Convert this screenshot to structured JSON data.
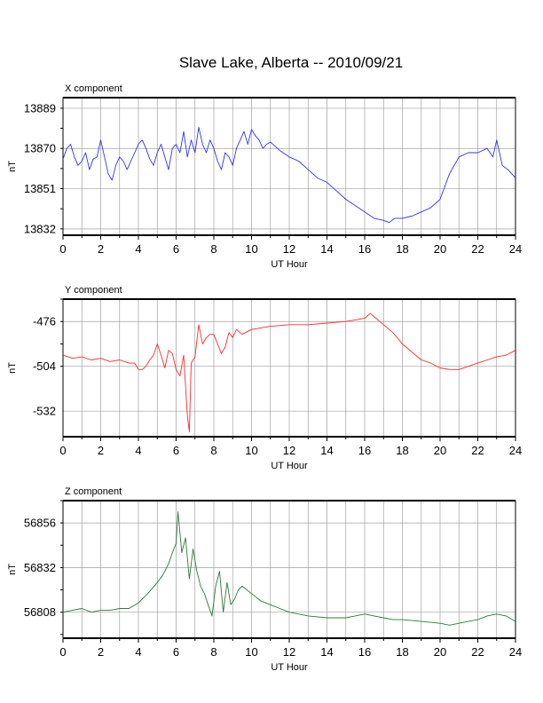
{
  "page_title": "Slave Lake, Alberta -- 2010/09/21",
  "chart_data": [
    {
      "type": "line",
      "title": "X component",
      "xlabel": "UT Hour",
      "ylabel": "nT",
      "xlim": [
        0,
        24
      ],
      "ylim": [
        13829,
        13894
      ],
      "x_ticks": [
        0,
        2,
        4,
        6,
        8,
        10,
        12,
        14,
        16,
        18,
        20,
        22,
        24
      ],
      "y_ticks": [
        13832,
        13851,
        13870,
        13889
      ],
      "grid": true,
      "series": [
        {
          "color": "#3030ff",
          "x": [
            0,
            0.2,
            0.4,
            0.6,
            0.8,
            1.0,
            1.2,
            1.4,
            1.6,
            1.8,
            2.0,
            2.2,
            2.4,
            2.6,
            2.8,
            3.0,
            3.2,
            3.4,
            3.6,
            3.8,
            4.0,
            4.2,
            4.4,
            4.6,
            4.8,
            5.0,
            5.2,
            5.4,
            5.6,
            5.8,
            6.0,
            6.2,
            6.4,
            6.6,
            6.8,
            7.0,
            7.2,
            7.4,
            7.6,
            7.8,
            8.0,
            8.2,
            8.4,
            8.6,
            8.8,
            9.0,
            9.2,
            9.4,
            9.6,
            9.8,
            10.0,
            10.2,
            10.4,
            10.6,
            10.8,
            11.0,
            11.5,
            12.0,
            12.5,
            13.0,
            13.5,
            14.0,
            14.5,
            15.0,
            15.5,
            16.0,
            16.5,
            17.0,
            17.3,
            17.6,
            18.0,
            18.5,
            19.0,
            19.5,
            20.0,
            20.5,
            21.0,
            21.5,
            22.0,
            22.5,
            22.8,
            23.0,
            23.3,
            23.6,
            24.0
          ],
          "values": [
            13865,
            13870,
            13872,
            13866,
            13862,
            13864,
            13868,
            13860,
            13865,
            13866,
            13874,
            13866,
            13858,
            13855,
            13862,
            13866,
            13864,
            13860,
            13864,
            13868,
            13872,
            13874,
            13870,
            13865,
            13862,
            13868,
            13872,
            13866,
            13860,
            13870,
            13872,
            13868,
            13878,
            13866,
            13874,
            13868,
            13880,
            13872,
            13868,
            13874,
            13870,
            13864,
            13860,
            13868,
            13866,
            13862,
            13870,
            13874,
            13878,
            13872,
            13879,
            13876,
            13874,
            13870,
            13872,
            13873,
            13869,
            13866,
            13864,
            13860,
            13856,
            13854,
            13850,
            13846,
            13843,
            13840,
            13837,
            13836,
            13835,
            13837,
            13837,
            13838,
            13840,
            13842,
            13846,
            13858,
            13866,
            13868,
            13868,
            13870,
            13866,
            13874,
            13862,
            13860,
            13856
          ]
        }
      ]
    },
    {
      "type": "line",
      "title": "Y component",
      "xlabel": "UT Hour",
      "ylabel": "nT",
      "xlim": [
        0,
        24
      ],
      "ylim": [
        -548,
        -462
      ],
      "x_ticks": [
        0,
        2,
        4,
        6,
        8,
        10,
        12,
        14,
        16,
        18,
        20,
        22,
        24
      ],
      "y_ticks": [
        -476,
        -504,
        -532
      ],
      "grid": true,
      "series": [
        {
          "color": "#ff2a2a",
          "x": [
            0,
            0.5,
            1.0,
            1.5,
            2.0,
            2.5,
            3.0,
            3.5,
            3.8,
            4.0,
            4.2,
            4.4,
            4.6,
            4.8,
            5.0,
            5.2,
            5.4,
            5.6,
            5.8,
            6.0,
            6.2,
            6.4,
            6.6,
            6.7,
            6.8,
            7.0,
            7.2,
            7.4,
            7.6,
            7.8,
            8.0,
            8.2,
            8.4,
            8.6,
            8.8,
            9.0,
            9.2,
            9.5,
            10.0,
            10.5,
            11.0,
            12.0,
            13.0,
            14.0,
            15.0,
            15.5,
            16.0,
            16.3,
            16.6,
            17.0,
            17.5,
            18.0,
            18.5,
            19.0,
            19.5,
            20.0,
            20.5,
            21.0,
            21.5,
            22.0,
            22.5,
            23.0,
            23.5,
            24.0
          ],
          "values": [
            -497,
            -499,
            -498,
            -500,
            -499,
            -501,
            -500,
            -502,
            -502,
            -506,
            -506,
            -504,
            -500,
            -497,
            -490,
            -497,
            -505,
            -494,
            -496,
            -506,
            -510,
            -497,
            -535,
            -545,
            -502,
            -498,
            -478,
            -490,
            -486,
            -484,
            -484,
            -490,
            -496,
            -492,
            -483,
            -486,
            -481,
            -484,
            -481,
            -480,
            -479,
            -478,
            -478,
            -477,
            -476,
            -475,
            -474,
            -471,
            -474,
            -478,
            -483,
            -490,
            -495,
            -500,
            -502,
            -505,
            -506,
            -506,
            -504,
            -502,
            -500,
            -498,
            -497,
            -494
          ]
        }
      ]
    },
    {
      "type": "line",
      "title": "Z component",
      "xlabel": "UT Hour",
      "ylabel": "nT",
      "xlim": [
        0,
        24
      ],
      "ylim": [
        56794,
        56868
      ],
      "x_ticks": [
        0,
        2,
        4,
        6,
        8,
        10,
        12,
        14,
        16,
        18,
        20,
        22,
        24
      ],
      "y_ticks": [
        56808,
        56832,
        56856
      ],
      "grid": true,
      "series": [
        {
          "color": "#2a7a3a",
          "x": [
            0,
            0.5,
            1.0,
            1.5,
            2.0,
            2.5,
            3.0,
            3.5,
            4.0,
            4.5,
            5.0,
            5.3,
            5.6,
            5.8,
            6.0,
            6.1,
            6.3,
            6.5,
            6.7,
            6.9,
            7.1,
            7.3,
            7.5,
            7.7,
            7.9,
            8.1,
            8.3,
            8.5,
            8.7,
            8.9,
            9.1,
            9.3,
            9.5,
            10.0,
            10.5,
            11.0,
            11.5,
            12.0,
            13.0,
            14.0,
            15.0,
            15.5,
            16.0,
            16.5,
            17.0,
            17.5,
            18.0,
            19.0,
            20.0,
            20.5,
            21.0,
            21.5,
            22.0,
            22.5,
            23.0,
            23.5,
            24.0
          ],
          "values": [
            56808,
            56809,
            56810,
            56808,
            56809,
            56809,
            56810,
            56810,
            56813,
            56818,
            56824,
            56828,
            56834,
            56840,
            56845,
            56862,
            56840,
            56848,
            56826,
            56842,
            56830,
            56822,
            56818,
            56812,
            56806,
            56822,
            56830,
            56808,
            56824,
            56812,
            56815,
            56820,
            56822,
            56818,
            56814,
            56812,
            56810,
            56808,
            56806,
            56805,
            56805,
            56806,
            56807,
            56806,
            56805,
            56804,
            56804,
            56803,
            56802,
            56801,
            56802,
            56803,
            56804,
            56806,
            56807,
            56806,
            56803
          ]
        }
      ]
    }
  ]
}
